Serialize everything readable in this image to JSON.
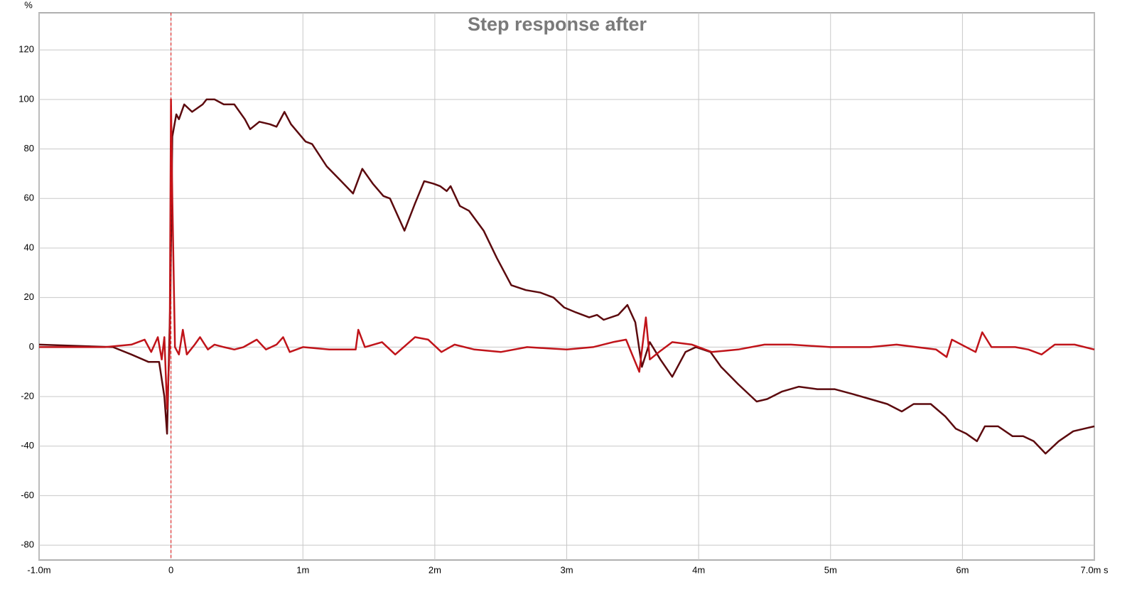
{
  "chart_data": {
    "type": "line",
    "title": "Step response after",
    "y_unit": "%",
    "xlim": [
      -1,
      7
    ],
    "ylim": [
      -86,
      135
    ],
    "xticks": [
      {
        "value": -1,
        "label": "-1.0m"
      },
      0,
      {
        "value": 1,
        "label": "1m"
      },
      {
        "value": 2,
        "label": "2m"
      },
      {
        "value": 3,
        "label": "3m"
      },
      {
        "value": 4,
        "label": "4m"
      },
      {
        "value": 5,
        "label": "5m"
      },
      {
        "value": 6,
        "label": "6m"
      },
      {
        "value": 7,
        "label": "7.0m s"
      }
    ],
    "yticks": [
      -80,
      -60,
      -40,
      -20,
      0,
      20,
      40,
      60,
      80,
      100,
      120
    ],
    "grid": true,
    "series": [
      {
        "color": "#5c0a0e",
        "x": [
          -1,
          -0.44,
          -0.3,
          -0.17,
          -0.09,
          -0.05,
          -0.03,
          -0.005,
          0.01,
          0.04,
          0.06,
          0.1,
          0.16,
          0.24,
          0.27,
          0.33,
          0.4,
          0.48,
          0.56,
          0.6,
          0.67,
          0.75,
          0.8,
          0.86,
          0.91,
          1.02,
          1.07,
          1.18,
          1.29,
          1.38,
          1.45,
          1.53,
          1.61,
          1.66,
          1.77,
          1.85,
          1.92,
          1.99,
          2.04,
          2.09,
          2.12,
          2.19,
          2.26,
          2.37,
          2.47,
          2.58,
          2.69,
          2.8,
          2.9,
          2.98,
          3.07,
          3.17,
          3.23,
          3.28,
          3.39,
          3.46,
          3.52,
          3.57,
          3.63,
          3.71,
          3.8,
          3.9,
          3.98,
          4.09,
          4.17,
          4.3,
          4.44,
          4.52,
          4.63,
          4.76,
          4.9,
          5.03,
          5.17,
          5.3,
          5.43,
          5.54,
          5.63,
          5.76,
          5.87,
          5.95,
          6.03,
          6.11,
          6.17,
          6.27,
          6.38,
          6.46,
          6.54,
          6.63,
          6.73,
          6.84,
          6.92,
          7
        ],
        "values": [
          1,
          0,
          -3,
          -6,
          -6,
          -20,
          -35,
          20,
          85,
          94,
          92,
          98,
          95,
          98,
          100,
          100,
          98,
          98,
          92,
          88,
          91,
          90,
          89,
          95,
          90,
          83,
          82,
          73,
          67,
          62,
          72,
          66,
          61,
          60,
          47,
          58,
          67,
          66,
          65,
          63,
          65,
          57,
          55,
          47,
          36,
          25,
          23,
          22,
          20,
          16,
          14,
          12,
          13,
          11,
          13,
          17,
          10,
          -8,
          2,
          -5,
          -12,
          -2,
          0,
          -2,
          -8,
          -15,
          -22,
          -21,
          -18,
          -16,
          -17,
          -17,
          -19,
          -21,
          -23,
          -26,
          -23,
          -23,
          -28,
          -33,
          -35,
          -38,
          -32,
          -32,
          -36,
          -36,
          -38,
          -43,
          -38,
          -34,
          -33,
          -32
        ]
      },
      {
        "color": "#c0141a",
        "x": [
          -1,
          -0.5,
          -0.3,
          -0.2,
          -0.15,
          -0.1,
          -0.07,
          -0.05,
          -0.03,
          -0.01,
          0,
          0.01,
          0.03,
          0.06,
          0.09,
          0.12,
          0.18,
          0.22,
          0.28,
          0.33,
          0.4,
          0.48,
          0.55,
          0.65,
          0.72,
          0.8,
          0.85,
          0.9,
          1,
          1.2,
          1.4,
          1.42,
          1.47,
          1.6,
          1.7,
          1.85,
          1.95,
          2.05,
          2.15,
          2.3,
          2.5,
          2.7,
          3,
          3.2,
          3.35,
          3.45,
          3.55,
          3.6,
          3.63,
          3.7,
          3.8,
          3.95,
          4.1,
          4.3,
          4.5,
          4.7,
          5,
          5.3,
          5.5,
          5.8,
          5.88,
          5.92,
          6.1,
          6.15,
          6.22,
          6.4,
          6.5,
          6.6,
          6.7,
          6.85,
          7
        ],
        "values": [
          0,
          0,
          1,
          3,
          -2,
          4,
          -5,
          4,
          -25,
          0,
          100,
          60,
          0,
          -3,
          7,
          -3,
          1,
          4,
          -1,
          1,
          0,
          -1,
          0,
          3,
          -1,
          1,
          4,
          -2,
          0,
          -1,
          -1,
          7,
          0,
          2,
          -3,
          4,
          3,
          -2,
          1,
          -1,
          -2,
          0,
          -1,
          0,
          2,
          3,
          -10,
          12,
          -5,
          -2,
          2,
          1,
          -2,
          -1,
          1,
          1,
          0,
          0,
          1,
          -1,
          -4,
          3,
          -2,
          6,
          0,
          0,
          -1,
          -3,
          1,
          1,
          -1
        ]
      }
    ]
  }
}
